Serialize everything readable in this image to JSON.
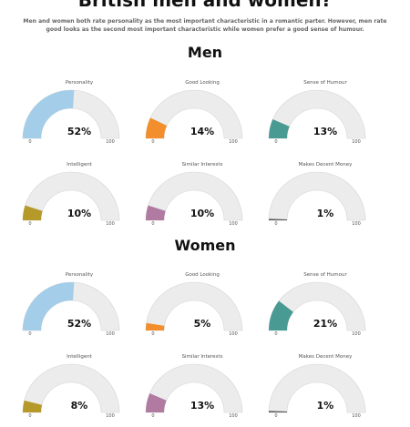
{
  "title": "British men and women?",
  "subtitle": "Men and women both rate personality as the most important characteristic in a romantic parter. However, men rate good looks as the second most important characteristic while women prefer a good sense of humour.",
  "colors": {
    "track": "#ececec",
    "track_border": "#d4d4d4",
    "Personality": "#a3cde8",
    "Good Looking": "#f28e2b",
    "Sense of Humour": "#4a9a94",
    "Intelligent": "#b5992a",
    "Similar Interests": "#b07aa1",
    "Makes Decent Money": "#555555"
  },
  "chart_data": [
    {
      "section": "Men",
      "type": "gauge",
      "min": 0,
      "max": 100,
      "gauges": [
        {
          "label": "Personality",
          "value": 52,
          "display": "52%",
          "min_label": "0",
          "max_label": "100"
        },
        {
          "label": "Good Looking",
          "value": 14,
          "display": "14%",
          "min_label": "0",
          "max_label": "100"
        },
        {
          "label": "Sense of Humour",
          "value": 13,
          "display": "13%",
          "min_label": "0",
          "max_label": "100"
        },
        {
          "label": "Intelligent",
          "value": 10,
          "display": "10%",
          "min_label": "0",
          "max_label": "100"
        },
        {
          "label": "Similar Interests",
          "value": 10,
          "display": "10%",
          "min_label": "0",
          "max_label": "100"
        },
        {
          "label": "Makes Decent Money",
          "value": 1,
          "display": "1%",
          "min_label": "0",
          "max_label": "100"
        }
      ]
    },
    {
      "section": "Women",
      "type": "gauge",
      "min": 0,
      "max": 100,
      "gauges": [
        {
          "label": "Personality",
          "value": 52,
          "display": "52%",
          "min_label": "0",
          "max_label": "100"
        },
        {
          "label": "Good Looking",
          "value": 5,
          "display": "5%",
          "min_label": "0",
          "max_label": "100"
        },
        {
          "label": "Sense of Humour",
          "value": 21,
          "display": "21%",
          "min_label": "0",
          "max_label": "100"
        },
        {
          "label": "Intelligent",
          "value": 8,
          "display": "8%",
          "min_label": "0",
          "max_label": "100"
        },
        {
          "label": "Similar Interests",
          "value": 13,
          "display": "13%",
          "min_label": "0",
          "max_label": "100"
        },
        {
          "label": "Makes Decent Money",
          "value": 1,
          "display": "1%",
          "min_label": "0",
          "max_label": "100"
        }
      ]
    }
  ]
}
